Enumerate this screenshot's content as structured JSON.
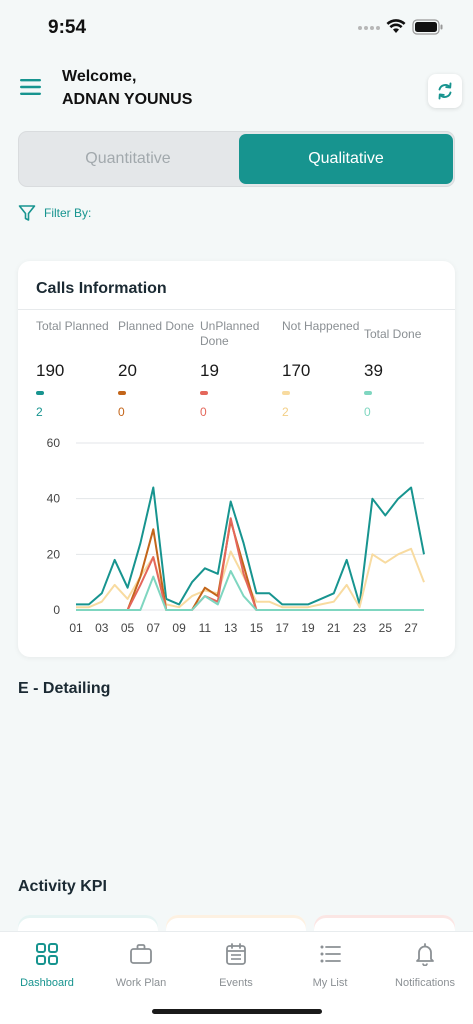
{
  "status_bar": {
    "time": "9:54"
  },
  "header": {
    "welcome": "Welcome,",
    "username": "ADNAN YOUNUS",
    "sync_icon": "refresh-icon",
    "menu_icon": "hamburger-icon"
  },
  "segments": {
    "left": "Quantitative",
    "right": "Qualitative",
    "selected": "Qualitative"
  },
  "filter": {
    "label": "Filter By:",
    "icon": "filter-icon"
  },
  "calls_card": {
    "title": "Calls Information",
    "stats": [
      {
        "label": "Total Planned",
        "value": "190",
        "sub": "2",
        "color": "#17948f"
      },
      {
        "label": "Planned Done",
        "value": "20",
        "sub": "0",
        "color": "#c3651a"
      },
      {
        "label": "UnPlanned Done",
        "value": "19",
        "sub": "0",
        "color": "#e4675b"
      },
      {
        "label": "Not Happened",
        "value": "170",
        "sub": "2",
        "color": "#f8dba0"
      },
      {
        "label": "Total Done",
        "value": "39",
        "sub": "0",
        "color": "#7fd6c0"
      }
    ]
  },
  "chart_data": {
    "type": "line",
    "x": [
      "01",
      "02",
      "03",
      "04",
      "05",
      "06",
      "07",
      "08",
      "09",
      "10",
      "11",
      "12",
      "13",
      "14",
      "15",
      "16",
      "17",
      "18",
      "19",
      "20",
      "21",
      "22",
      "23",
      "24",
      "25",
      "26",
      "27",
      "28"
    ],
    "xtick_labels": [
      "01",
      "03",
      "05",
      "07",
      "09",
      "11",
      "13",
      "15",
      "17",
      "19",
      "21",
      "23",
      "25",
      "27"
    ],
    "yticks": [
      0,
      20,
      40,
      60
    ],
    "ylim": [
      0,
      60
    ],
    "grid": true,
    "series": [
      {
        "color": "#17948f",
        "values": [
          2,
          2,
          6,
          18,
          8,
          24,
          44,
          4,
          2,
          10,
          15,
          13,
          39,
          24,
          6,
          6,
          2,
          2,
          2,
          4,
          6,
          18,
          2,
          40,
          34,
          40,
          44,
          20
        ]
      },
      {
        "color": "#f8dba0",
        "values": [
          1,
          1,
          3,
          9,
          4,
          12,
          19,
          2,
          1,
          5,
          7,
          6,
          21,
          12,
          3,
          3,
          1,
          1,
          1,
          2,
          3,
          9,
          1,
          20,
          17,
          20,
          22,
          10
        ]
      },
      {
        "color": "#c3651a",
        "values": [
          0,
          0,
          0,
          0,
          0,
          12,
          29,
          0,
          0,
          0,
          8,
          5,
          32,
          16,
          0,
          0,
          0,
          0,
          0,
          0,
          0,
          0,
          0,
          0,
          0,
          0,
          0,
          0
        ]
      },
      {
        "color": "#e4675b",
        "values": [
          0,
          0,
          0,
          0,
          0,
          9,
          19,
          0,
          0,
          0,
          5,
          3,
          33,
          13,
          0,
          0,
          0,
          0,
          0,
          0,
          0,
          0,
          0,
          0,
          0,
          0,
          0,
          0
        ]
      },
      {
        "color": "#7fd6c0",
        "values": [
          0,
          0,
          0,
          0,
          0,
          0,
          12,
          0,
          0,
          0,
          5,
          2,
          14,
          5,
          0,
          0,
          0,
          0,
          0,
          0,
          0,
          0,
          0,
          0,
          0,
          0,
          0,
          0
        ]
      }
    ]
  },
  "sections": {
    "e_detailing": "E - Detailing",
    "activity_kpi": "Activity KPI"
  },
  "kpi_colors": [
    "#e6f4f3",
    "#fdf1e2",
    "#fbe6e4"
  ],
  "tabs": [
    {
      "label": "Dashboard",
      "icon": "grid-icon",
      "active": true
    },
    {
      "label": "Work Plan",
      "icon": "briefcase-icon",
      "active": false
    },
    {
      "label": "Events",
      "icon": "calendar-icon",
      "active": false
    },
    {
      "label": "My List",
      "icon": "list-icon",
      "active": false
    },
    {
      "label": "Notifications",
      "icon": "bell-icon",
      "active": false
    }
  ]
}
